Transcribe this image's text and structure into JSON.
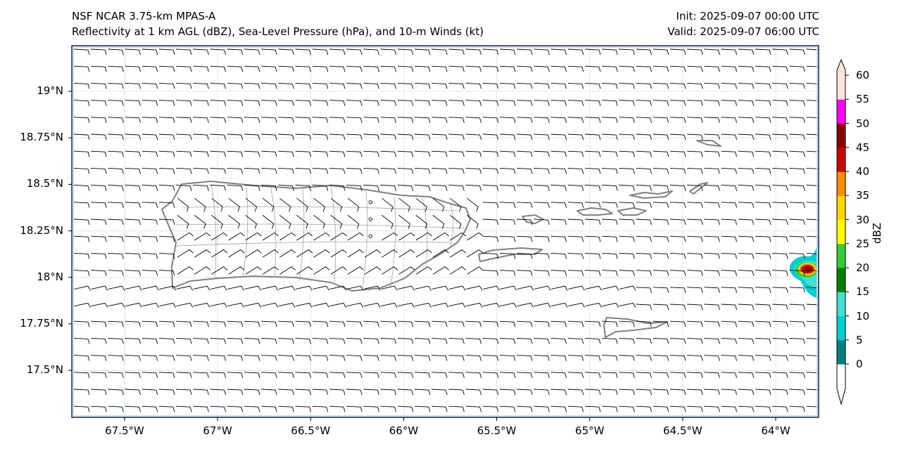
{
  "title": {
    "line1": "NSF NCAR 3.75-km MPAS-A",
    "line2": "Reflectivity at 1 km AGL (dBZ), Sea-Level Pressure (hPa), and 10-m Winds (kt)",
    "init": "Init: 2025-09-07 00:00 UTC",
    "valid": "Valid: 2025-09-07 06:00 UTC"
  },
  "axes": {
    "y_ticks": [
      {
        "value": 19,
        "label": "19°N"
      },
      {
        "value": 18.75,
        "label": "18.75°N"
      },
      {
        "value": 18.5,
        "label": "18.5°N"
      },
      {
        "value": 18.25,
        "label": "18.25°N"
      },
      {
        "value": 18,
        "label": "18°N"
      },
      {
        "value": 17.75,
        "label": "17.75°N"
      },
      {
        "value": 17.5,
        "label": "17.5°N"
      }
    ],
    "x_ticks": [
      {
        "value": -67.5,
        "label": "67.5°W"
      },
      {
        "value": -67,
        "label": "67°W"
      },
      {
        "value": -66.5,
        "label": "66.5°W"
      },
      {
        "value": -66,
        "label": "66°W"
      },
      {
        "value": -65.5,
        "label": "65.5°W"
      },
      {
        "value": -65,
        "label": "65°W"
      },
      {
        "value": -64.5,
        "label": "64.5°W"
      },
      {
        "value": -64,
        "label": "64°W"
      }
    ],
    "lon_range": [
      -67.78,
      -63.77
    ],
    "lat_range": [
      17.26,
      19.25
    ]
  },
  "colorbar": {
    "label": "dBZ",
    "ticks": [
      "0",
      "5",
      "10",
      "15",
      "20",
      "25",
      "30",
      "35",
      "40",
      "45",
      "50",
      "55",
      "60"
    ],
    "colors": [
      "#008080",
      "#00ced1",
      "#40e0d0",
      "#008000",
      "#32cd32",
      "#ffff00",
      "#ffd700",
      "#ff8c00",
      "#cc0000",
      "#8b0000",
      "#ff00ff",
      "#fde4dc"
    ],
    "under_color": "#ffffff",
    "over_color": "#fde4dc"
  },
  "colors": {
    "coast": "#808080",
    "frame": "#1b2a44",
    "barb": "#000000"
  }
}
